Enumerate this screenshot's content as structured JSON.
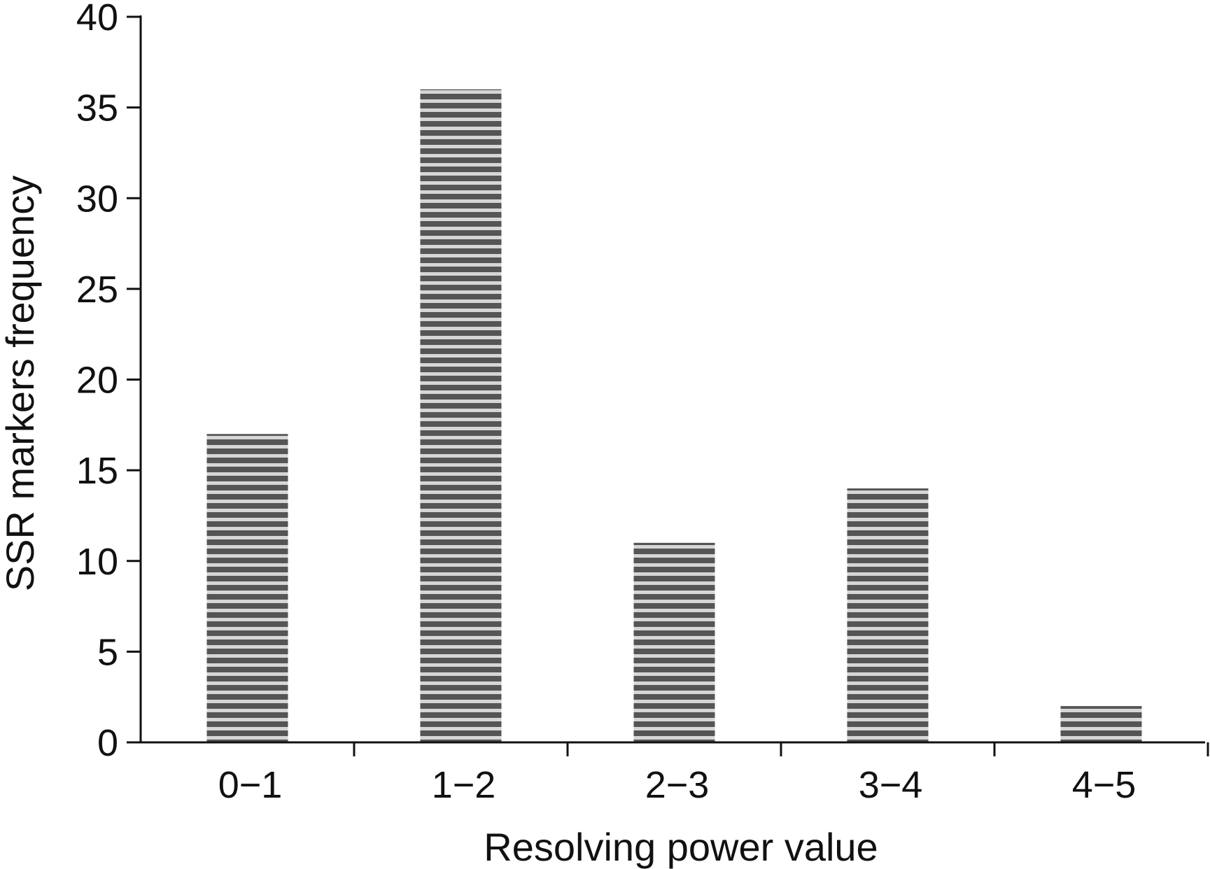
{
  "chart_data": {
    "type": "bar",
    "categories": [
      "0−1",
      "1−2",
      "2−3",
      "3−4",
      "4−5"
    ],
    "values": [
      17,
      36,
      11,
      14,
      2
    ],
    "xlabel": "Resolving power value",
    "ylabel": "SSR markers frequency",
    "ylim": [
      0,
      40
    ],
    "yticks": [
      0,
      5,
      10,
      15,
      20,
      25,
      30,
      35,
      40
    ],
    "grid": false,
    "bar_pattern": "horizontal-stripes",
    "colors": {
      "stripe_dark": "#555555",
      "stripe_light": "#d6d6d6",
      "axis": "#111111"
    }
  }
}
